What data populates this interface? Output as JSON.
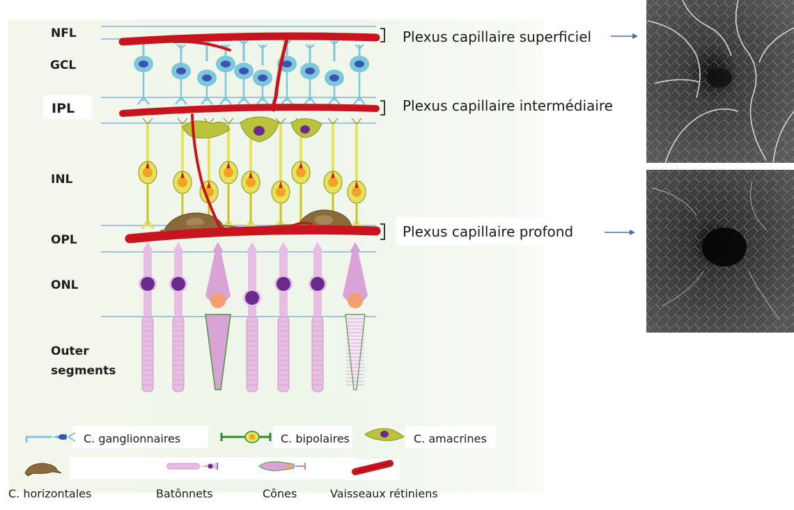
{
  "layers": {
    "nfl": "NFL",
    "gcl": "GCL",
    "ipl": "IPL",
    "inl": "INL",
    "opl": "OPL",
    "onl": "ONL",
    "outer_1": "Outer",
    "outer_2": "segments"
  },
  "plexus": {
    "superficial": "Plexus capillaire superficiel",
    "intermediate": "Plexus capillaire intermédiaire",
    "deep": "Plexus capillaire profond"
  },
  "legend": {
    "ganglion": "C. ganglionnaires",
    "bipolar": "C. bipolaires",
    "amacrine": "C. amacrines",
    "horizontal": "C. horizontales",
    "rods": "Batônnets",
    "cones": "Cônes",
    "vessels": "Vaisseaux rétiniens"
  },
  "colors": {
    "background_panel": "#eef4e9",
    "layer_line": "#7fb3dc",
    "vessel": "#c8141e",
    "ganglion": "#7dc6dc",
    "ganglion_nucleus": "#3a55b0",
    "bipolar": "#e4e35a",
    "bipolar_nucleus": "#f2a326",
    "amacrine": "#b9c43c",
    "horizontal": "#8a6a3a",
    "rod": "#e7bde3",
    "rod_nucleus": "#6a2c8c",
    "cone": "#d9a3d6",
    "cone_nucleus": "#f2a070",
    "cone_edge": "#3f9a3a"
  }
}
